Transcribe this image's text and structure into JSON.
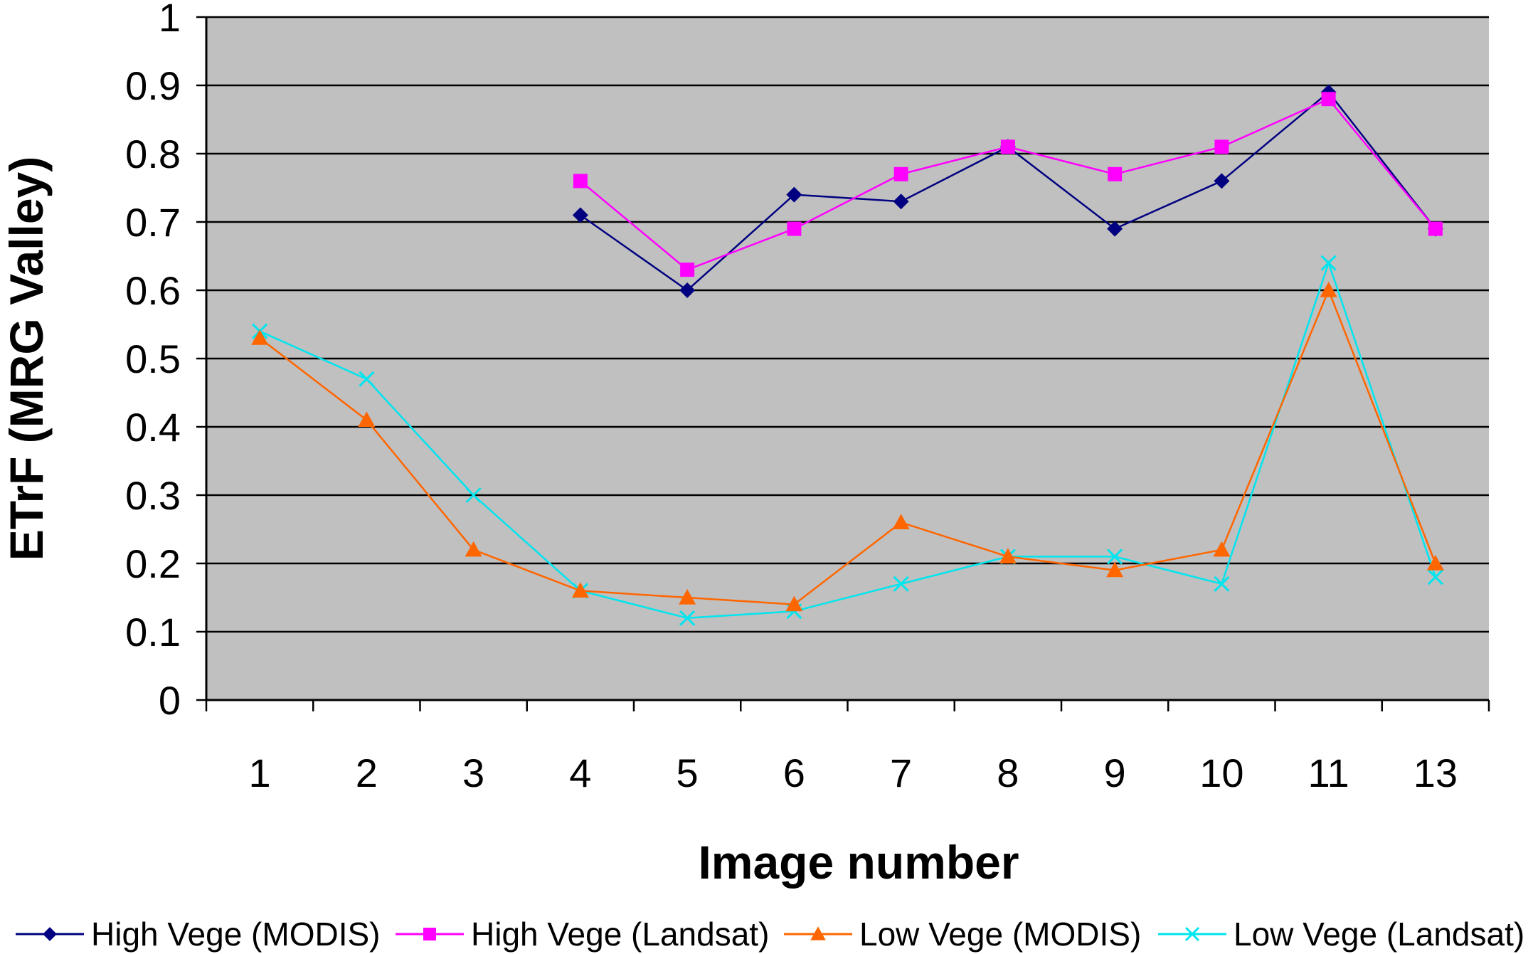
{
  "chart_data": {
    "type": "line",
    "xlabel": "Image number",
    "ylabel": "ETrF (MRG Valley)",
    "categories": [
      "1",
      "2",
      "3",
      "4",
      "5",
      "6",
      "7",
      "8",
      "9",
      "10",
      "11",
      "13"
    ],
    "ylim": [
      0,
      1
    ],
    "yticks": [
      "0",
      "0.1",
      "0.2",
      "0.3",
      "0.4",
      "0.5",
      "0.6",
      "0.7",
      "0.8",
      "0.9",
      "1"
    ],
    "grid": true,
    "plot_background": "#C0C0C0",
    "legend_position": "bottom",
    "series": [
      {
        "name": "High Vege (MODIS)",
        "color": "#000080",
        "marker": "diamond",
        "values": [
          null,
          null,
          null,
          0.71,
          0.6,
          0.74,
          0.73,
          0.81,
          0.69,
          0.76,
          0.89,
          0.69
        ]
      },
      {
        "name": "High Vege (Landsat)",
        "color": "#FF00FF",
        "marker": "square",
        "values": [
          null,
          null,
          null,
          0.76,
          0.63,
          0.69,
          0.77,
          0.81,
          0.77,
          0.81,
          0.88,
          0.69
        ]
      },
      {
        "name": "Low Vege (MODIS)",
        "color": "#FF6600",
        "marker": "triangle",
        "values": [
          0.53,
          0.41,
          0.22,
          0.16,
          0.15,
          0.14,
          0.26,
          0.21,
          0.19,
          0.22,
          0.6,
          0.2
        ]
      },
      {
        "name": "Low Vege (Landsat)",
        "color": "#00E5EE",
        "marker": "x",
        "values": [
          0.54,
          0.47,
          0.3,
          0.16,
          0.12,
          0.13,
          0.17,
          0.21,
          0.21,
          0.17,
          0.64,
          0.18
        ]
      }
    ]
  }
}
